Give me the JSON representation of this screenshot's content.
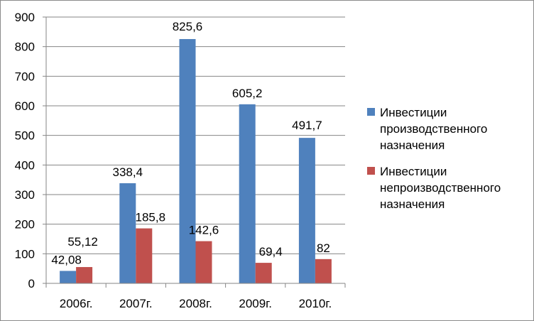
{
  "chart_data": {
    "type": "bar",
    "categories": [
      "2006г.",
      "2007г.",
      "2008г.",
      "2009г.",
      "2010г."
    ],
    "series": [
      {
        "name": "Инвестиции производственного назначения",
        "values": [
          42.08,
          338.4,
          825.6,
          605.2,
          491.7
        ],
        "labels": [
          "42,08",
          "338,4",
          "825,6",
          "605,2",
          "491,7"
        ],
        "color": "#4f81bd"
      },
      {
        "name": "Инвестиции непроизводственного назначения",
        "values": [
          55.12,
          185.8,
          142.6,
          69.4,
          82
        ],
        "labels": [
          "55,12",
          "185,8",
          "142,6",
          "69,4",
          "82"
        ],
        "color": "#c0504d"
      }
    ],
    "ylim": [
      0,
      900
    ],
    "yticks": [
      0,
      100,
      200,
      300,
      400,
      500,
      600,
      700,
      800,
      900
    ],
    "grid": true,
    "legend_position": "right"
  }
}
